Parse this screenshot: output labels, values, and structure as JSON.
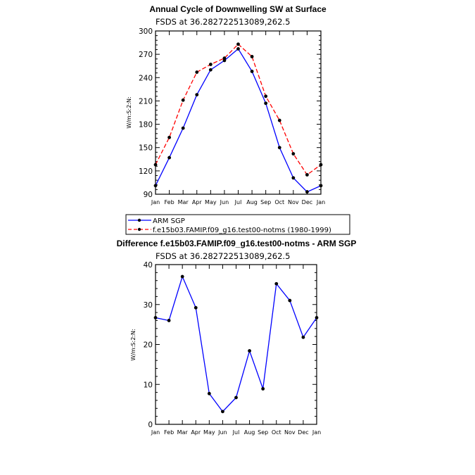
{
  "chart_data": [
    {
      "type": "line",
      "title": "Annual Cycle of Downwelling SW at Surface",
      "subtitle": "FSDS at 36.282722513089,262.5",
      "ylabel": "W/m:S:2:N:",
      "categories": [
        "Jan",
        "Feb",
        "Mar",
        "Apr",
        "May",
        "Jun",
        "Jul",
        "Aug",
        "Sep",
        "Oct",
        "Nov",
        "Dec",
        "Jan"
      ],
      "yticks": [
        "90",
        "120",
        "150",
        "180",
        "210",
        "240",
        "270",
        "300"
      ],
      "ylim": [
        90,
        300
      ],
      "series": [
        {
          "name": "ARM SGP",
          "color": "#0000ff",
          "dash": "solid",
          "values": [
            101,
            137,
            175,
            218,
            250,
            262,
            277,
            248,
            207,
            150,
            111,
            93,
            101
          ]
        },
        {
          "name": "f.e15b03.FAMIP.f09_g16.test00-notms (1980-1999)",
          "color": "#ff0000",
          "dash": "dashed",
          "values": [
            128,
            163,
            211,
            247,
            257,
            265,
            283,
            267,
            216,
            185,
            142,
            115,
            128
          ]
        }
      ],
      "legend_position": "below"
    },
    {
      "type": "line",
      "title": "Difference f.e15b03.FAMIP.f09_g16.test00-notms - ARM SGP",
      "subtitle": "FSDS at 36.282722513089,262.5",
      "ylabel": "W/m:S:2:N:",
      "categories": [
        "Jan",
        "Feb",
        "Mar",
        "Apr",
        "May",
        "Jun",
        "Jul",
        "Aug",
        "Sep",
        "Oct",
        "Nov",
        "Dec",
        "Jan"
      ],
      "yticks": [
        "0",
        "10",
        "20",
        "30",
        "40"
      ],
      "ylim": [
        0,
        40
      ],
      "series": [
        {
          "color": "#0000ff",
          "values": [
            26.7,
            26,
            37,
            29.2,
            7.7,
            3.2,
            6.7,
            18.4,
            8.9,
            35.2,
            31,
            21.8,
            26.7
          ]
        }
      ]
    }
  ]
}
